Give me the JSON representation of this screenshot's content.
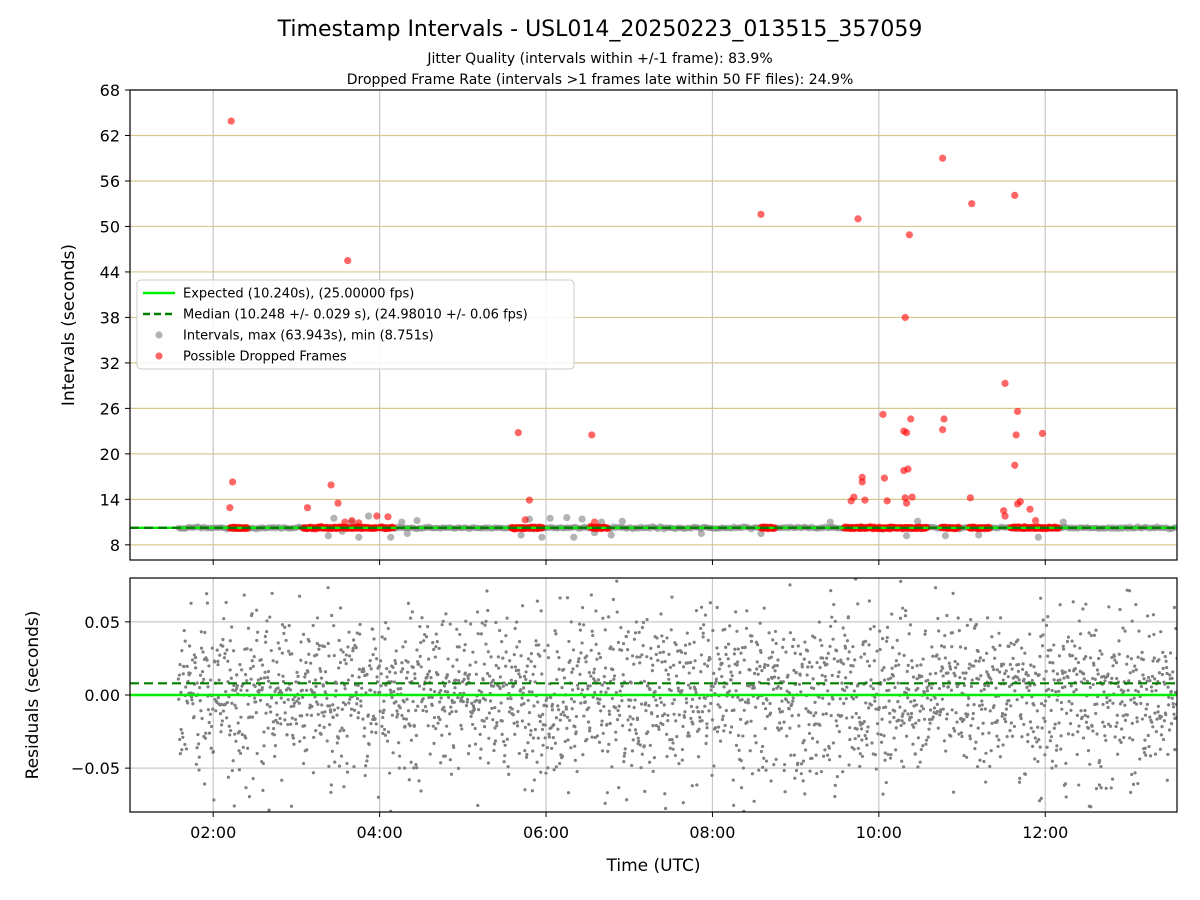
{
  "figure": {
    "title": "Timestamp Intervals - USL014_20250223_013515_357059",
    "subtitle_1": "Jitter Quality (intervals within +/-1 frame): 83.9%",
    "subtitle_2": "Dropped Frame Rate (intervals >1 frames late within 50 FF files): 24.9%"
  },
  "colors": {
    "expected": "#00ee00",
    "median": "#007f00",
    "intervals": "#808080",
    "dropped": "#ff0000",
    "hgrid_top": "#d8c890",
    "grid": "#c8c8c8"
  },
  "chart_data": [
    {
      "type": "scatter",
      "panel": "top",
      "ylabel": "Intervals (seconds)",
      "ylim": [
        6,
        68
      ],
      "yticks": [
        8,
        14,
        20,
        26,
        32,
        38,
        44,
        50,
        56,
        62,
        68
      ],
      "xlim": [
        "01:00",
        "13:35"
      ],
      "xticks": [
        "02:00",
        "04:00",
        "06:00",
        "08:00",
        "10:00",
        "12:00"
      ],
      "grid": true,
      "legend_position": "center-left",
      "expected_line": {
        "name": "Expected (10.240s), (25.00000 fps)",
        "y": 10.24
      },
      "median_line": {
        "name": "Median (10.248 +/- 0.029 s), (24.98010 +/- 0.06 fps)",
        "y": 10.248
      },
      "intervals_series": {
        "name": "Intervals, max (63.943s), min (8.751s)",
        "band_y": 10.24,
        "band_x": [
          "01:35",
          "13:35"
        ],
        "outliers": [
          {
            "x": "03:23",
            "y": 9.2
          },
          {
            "x": "03:27",
            "y": 11.5
          },
          {
            "x": "03:33",
            "y": 9.8
          },
          {
            "x": "03:40",
            "y": 11.0
          },
          {
            "x": "03:45",
            "y": 9.0
          },
          {
            "x": "03:52",
            "y": 11.8
          },
          {
            "x": "04:08",
            "y": 9.0
          },
          {
            "x": "04:16",
            "y": 11.0
          },
          {
            "x": "04:20",
            "y": 9.5
          },
          {
            "x": "04:27",
            "y": 11.2
          },
          {
            "x": "05:42",
            "y": 9.3
          },
          {
            "x": "05:48",
            "y": 11.4
          },
          {
            "x": "05:57",
            "y": 9.0
          },
          {
            "x": "06:03",
            "y": 11.5
          },
          {
            "x": "06:15",
            "y": 11.6
          },
          {
            "x": "06:20",
            "y": 9.0
          },
          {
            "x": "06:26",
            "y": 11.4
          },
          {
            "x": "06:35",
            "y": 9.6
          },
          {
            "x": "06:40",
            "y": 11.0
          },
          {
            "x": "06:47",
            "y": 9.3
          },
          {
            "x": "06:55",
            "y": 11.1
          },
          {
            "x": "07:52",
            "y": 9.5
          },
          {
            "x": "08:35",
            "y": 9.5
          },
          {
            "x": "09:25",
            "y": 11.0
          },
          {
            "x": "10:20",
            "y": 9.2
          },
          {
            "x": "10:28",
            "y": 11.1
          },
          {
            "x": "10:48",
            "y": 9.2
          },
          {
            "x": "11:12",
            "y": 9.3
          },
          {
            "x": "11:55",
            "y": 9.0
          },
          {
            "x": "12:13",
            "y": 11.0
          }
        ]
      },
      "dropped_series": {
        "name": "Possible Dropped Frames",
        "clusters": [
          {
            "x_start": "02:12",
            "x_end": "02:25",
            "y": 10.24
          },
          {
            "x_start": "03:05",
            "x_end": "03:58",
            "y": 10.24
          },
          {
            "x_start": "04:00",
            "x_end": "04:10",
            "y": 10.24
          },
          {
            "x_start": "05:35",
            "x_end": "05:58",
            "y": 10.24
          },
          {
            "x_start": "06:32",
            "x_end": "06:45",
            "y": 10.24
          },
          {
            "x_start": "08:35",
            "x_end": "08:45",
            "y": 10.24
          },
          {
            "x_start": "09:35",
            "x_end": "10:00",
            "y": 10.24
          },
          {
            "x_start": "10:00",
            "x_end": "10:35",
            "y": 10.24
          },
          {
            "x_start": "10:45",
            "x_end": "10:58",
            "y": 10.24
          },
          {
            "x_start": "11:05",
            "x_end": "11:20",
            "y": 10.24
          },
          {
            "x_start": "11:35",
            "x_end": "12:10",
            "y": 10.24
          }
        ],
        "points": [
          {
            "x": "02:13",
            "y": 63.9
          },
          {
            "x": "02:14",
            "y": 16.3
          },
          {
            "x": "02:12",
            "y": 12.9
          },
          {
            "x": "03:08",
            "y": 12.9
          },
          {
            "x": "03:25",
            "y": 15.9
          },
          {
            "x": "03:30",
            "y": 13.5
          },
          {
            "x": "03:35",
            "y": 11.0
          },
          {
            "x": "03:40",
            "y": 11.2
          },
          {
            "x": "03:45",
            "y": 10.9
          },
          {
            "x": "03:37",
            "y": 45.5
          },
          {
            "x": "03:58",
            "y": 11.8
          },
          {
            "x": "04:06",
            "y": 11.7
          },
          {
            "x": "05:40",
            "y": 22.8
          },
          {
            "x": "05:48",
            "y": 13.9
          },
          {
            "x": "05:45",
            "y": 11.3
          },
          {
            "x": "06:33",
            "y": 22.5
          },
          {
            "x": "06:35",
            "y": 11.0
          },
          {
            "x": "08:35",
            "y": 51.6
          },
          {
            "x": "09:40",
            "y": 13.8
          },
          {
            "x": "09:42",
            "y": 14.3
          },
          {
            "x": "09:48",
            "y": 16.3
          },
          {
            "x": "09:48",
            "y": 16.9
          },
          {
            "x": "09:50",
            "y": 13.9
          },
          {
            "x": "09:45",
            "y": 51.0
          },
          {
            "x": "10:03",
            "y": 25.2
          },
          {
            "x": "10:04",
            "y": 16.8
          },
          {
            "x": "10:06",
            "y": 13.8
          },
          {
            "x": "10:18",
            "y": 17.8
          },
          {
            "x": "10:18",
            "y": 23.0
          },
          {
            "x": "10:19",
            "y": 14.2
          },
          {
            "x": "10:20",
            "y": 22.8
          },
          {
            "x": "10:20",
            "y": 13.5
          },
          {
            "x": "10:21",
            "y": 18.0
          },
          {
            "x": "10:19",
            "y": 38.0
          },
          {
            "x": "10:22",
            "y": 48.9
          },
          {
            "x": "10:23",
            "y": 24.6
          },
          {
            "x": "10:24",
            "y": 14.3
          },
          {
            "x": "10:46",
            "y": 59.0
          },
          {
            "x": "10:46",
            "y": 23.2
          },
          {
            "x": "10:47",
            "y": 24.6
          },
          {
            "x": "11:07",
            "y": 53.0
          },
          {
            "x": "11:06",
            "y": 14.2
          },
          {
            "x": "11:31",
            "y": 29.3
          },
          {
            "x": "11:30",
            "y": 12.5
          },
          {
            "x": "11:31",
            "y": 11.8
          },
          {
            "x": "11:38",
            "y": 54.1
          },
          {
            "x": "11:38",
            "y": 18.5
          },
          {
            "x": "11:39",
            "y": 22.5
          },
          {
            "x": "11:40",
            "y": 25.6
          },
          {
            "x": "11:40",
            "y": 13.4
          },
          {
            "x": "11:42",
            "y": 13.7
          },
          {
            "x": "11:49",
            "y": 12.7
          },
          {
            "x": "11:53",
            "y": 11.2
          },
          {
            "x": "11:58",
            "y": 22.7
          }
        ]
      }
    },
    {
      "type": "scatter",
      "panel": "bottom",
      "xlabel": "Time (UTC)",
      "ylabel": "Residuals (seconds)",
      "ylim": [
        -0.08,
        0.08
      ],
      "yticks": [
        -0.05,
        0.0,
        0.05
      ],
      "ytick_labels": [
        "−0.05",
        "0.00",
        "0.05"
      ],
      "xlim": [
        "01:00",
        "13:35"
      ],
      "xticks": [
        "02:00",
        "04:00",
        "06:00",
        "08:00",
        "10:00",
        "12:00"
      ],
      "grid": true,
      "expected_residual": 0.0,
      "median_residual": 0.008,
      "residuals": {
        "x_range": [
          "01:35",
          "13:35"
        ],
        "mean": 0.0,
        "spread_std": 0.028,
        "approx_points": 2600
      }
    }
  ]
}
